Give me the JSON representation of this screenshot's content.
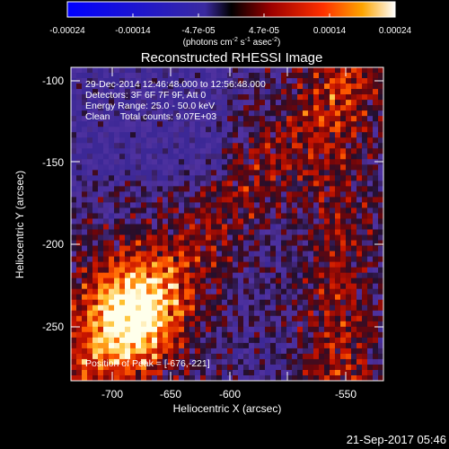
{
  "colorbar": {
    "tick_labels": [
      "-0.00024",
      "-0.00014",
      "-4.7e-05",
      "4.7e-05",
      "0.00014",
      "0.00024"
    ],
    "units": "(photons cm",
    "units_sup1": "-2",
    "units_mid": " s",
    "units_sup2": "-1",
    "units_end": " asec",
    "units_sup3": "-2",
    "units_close": ")"
  },
  "plot": {
    "title": "Reconstructed RHESSI Image",
    "xlabel": "Heliocentric X (arcsec)",
    "ylabel": "Heliocentric Y (arcsec)",
    "x_ticks": [
      "-700",
      "-650",
      "-600",
      "-550"
    ],
    "y_ticks": [
      "-100",
      "-150",
      "-200",
      "-250"
    ],
    "info": [
      "29-Dec-2014 12:46:48.000 to 12:56:48.000",
      "Detectors: 3F 6F 7F 9F, Att 0",
      "Energy Range: 25.0 - 50.0 keV",
      "Clean    Total counts: 9.07E+03"
    ],
    "peak_label": "Position of Peak = [-676,-221]"
  },
  "timestamp": "21-Sep-2017 05:46",
  "colors": {
    "background": "#000000",
    "foreground": "#ffffff",
    "colormap": [
      "#0000ff",
      "#2b1f88",
      "#1a0d2e",
      "#7a0000",
      "#ff1a00",
      "#ff8c00",
      "#ffffff"
    ]
  }
}
